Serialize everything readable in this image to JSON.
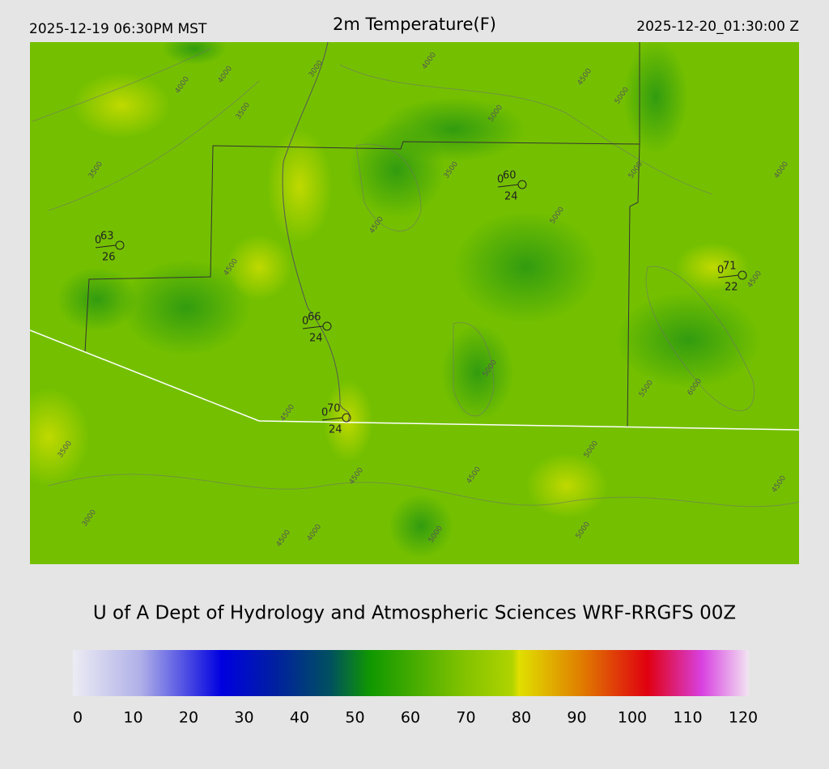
{
  "header": {
    "valid_local": "2025-12-19 06:30PM MST",
    "title": "2m Temperature(F)",
    "valid_utc": "2025-12-20_01:30:00 Z"
  },
  "credit": "U of A Dept of Hydrology and Atmospheric Sciences WRF-RRGFS 00Z",
  "colorbar": {
    "range": [
      0,
      120
    ],
    "ticks": [
      0,
      10,
      20,
      30,
      40,
      50,
      60,
      70,
      80,
      90,
      100,
      110,
      120
    ]
  },
  "stations": [
    {
      "wind": "0",
      "temperature": "63",
      "dewpoint": "26"
    },
    {
      "wind": "0",
      "temperature": "60",
      "dewpoint": "24"
    },
    {
      "wind": "0",
      "temperature": "71",
      "dewpoint": "22"
    },
    {
      "wind": "0",
      "temperature": "66",
      "dewpoint": "24"
    },
    {
      "wind": "0",
      "temperature": "70",
      "dewpoint": "24"
    }
  ],
  "contour_labels": [
    "4000",
    "4000",
    "3000",
    "4000",
    "3500",
    "3500",
    "4500",
    "5000",
    "5000",
    "5000",
    "5000",
    "4000",
    "4500",
    "4500",
    "5000",
    "4500",
    "5500",
    "6000",
    "4500",
    "3500",
    "3000",
    "4500",
    "4000",
    "5000",
    "4500",
    "5000",
    "5000",
    "4500",
    "3500",
    "4500"
  ]
}
